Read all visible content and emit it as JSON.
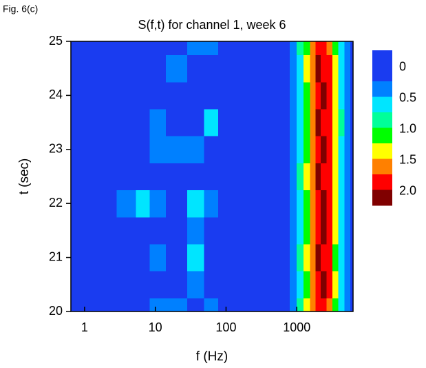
{
  "figure_label": "Fig. 6(c)",
  "chart_data": {
    "type": "contour",
    "title": "S(f,t) for channel 1, week 6",
    "x_label": "f (Hz)",
    "y_label": "t (sec)",
    "x": [
      0.64,
      1,
      2,
      4,
      7,
      10,
      20,
      40,
      60,
      100,
      300,
      700,
      900,
      1100,
      1400,
      1700,
      2000,
      2400,
      2900,
      3500,
      4300,
      5200,
      6250
    ],
    "y": [
      20,
      20.5,
      21,
      21.5,
      22,
      22.5,
      23,
      23.5,
      24,
      24.5,
      25
    ],
    "z": [
      [
        0.1,
        0.1,
        0.1,
        0.1,
        0.1,
        0.3,
        0.3,
        0.1,
        0.4,
        0.1,
        0.1,
        0.1,
        0.4,
        0.8,
        1.3,
        1.7,
        1.9,
        1.95,
        1.7,
        1.2,
        0.6,
        0.3,
        0.1
      ],
      [
        0.1,
        0.1,
        0.1,
        0.1,
        0.1,
        0.1,
        0.1,
        0.4,
        0.1,
        0.1,
        0.1,
        0.1,
        0.35,
        0.7,
        1.2,
        1.6,
        1.9,
        2.1,
        1.8,
        1.3,
        0.7,
        0.35,
        0.1
      ],
      [
        0.1,
        0.1,
        0.1,
        0.1,
        0.1,
        0.3,
        0.1,
        0.5,
        0.1,
        0.1,
        0.1,
        0.15,
        0.4,
        0.75,
        1.25,
        1.65,
        2.05,
        1.9,
        1.75,
        1.2,
        0.65,
        0.3,
        0.1
      ],
      [
        0.1,
        0.1,
        0.1,
        0.1,
        0.1,
        0.1,
        0.1,
        0.3,
        0.1,
        0.1,
        0.1,
        0.1,
        0.3,
        0.7,
        1.2,
        1.6,
        1.95,
        2.0,
        1.8,
        1.3,
        0.7,
        0.35,
        0.1
      ],
      [
        0.1,
        0.1,
        0.1,
        0.3,
        0.6,
        0.3,
        0.1,
        0.5,
        0.3,
        0.1,
        0.1,
        0.1,
        0.35,
        0.7,
        1.15,
        1.55,
        1.9,
        2.1,
        1.85,
        1.3,
        0.7,
        0.3,
        0.1
      ],
      [
        0.1,
        0.1,
        0.1,
        0.1,
        0.1,
        0.1,
        0.1,
        0.1,
        0.1,
        0.1,
        0.1,
        0.1,
        0.4,
        0.75,
        1.25,
        1.65,
        2.05,
        1.95,
        1.8,
        1.25,
        0.65,
        0.3,
        0.1
      ],
      [
        0.1,
        0.1,
        0.1,
        0.1,
        0.1,
        0.4,
        0.3,
        0.4,
        0.1,
        0.1,
        0.1,
        0.1,
        0.35,
        0.7,
        1.2,
        1.6,
        1.9,
        2.05,
        1.75,
        1.3,
        0.7,
        0.35,
        0.1
      ],
      [
        0.1,
        0.1,
        0.1,
        0.1,
        0.1,
        0.4,
        0.1,
        0.1,
        0.5,
        0.1,
        0.1,
        0.1,
        0.3,
        0.65,
        1.15,
        1.55,
        2.05,
        1.95,
        1.8,
        1.35,
        0.75,
        0.35,
        0.1
      ],
      [
        0.1,
        0.1,
        0.1,
        0.1,
        0.1,
        0.1,
        0.1,
        0.1,
        0.1,
        0.1,
        0.1,
        0.1,
        0.35,
        0.7,
        1.2,
        1.6,
        1.9,
        2.0,
        1.85,
        1.3,
        0.7,
        0.3,
        0.1
      ],
      [
        0.1,
        0.1,
        0.1,
        0.1,
        0.1,
        0.1,
        0.3,
        0.1,
        0.1,
        0.1,
        0.1,
        0.1,
        0.35,
        0.7,
        1.25,
        1.7,
        2.05,
        1.9,
        1.75,
        1.25,
        0.65,
        0.35,
        0.1
      ],
      [
        0.1,
        0.1,
        0.1,
        0.1,
        0.1,
        0.1,
        0.1,
        0.3,
        0.3,
        0.1,
        0.1,
        0.1,
        0.4,
        0.75,
        1.2,
        1.6,
        1.9,
        1.95,
        1.7,
        1.2,
        0.6,
        0.3,
        0.1
      ]
    ],
    "x_log": true,
    "xlim": [
      0.64,
      6250
    ],
    "xticks": [
      1,
      10,
      100,
      1000
    ],
    "ylim": [
      20,
      25
    ],
    "yticks": [
      20,
      21,
      22,
      23,
      24,
      25
    ],
    "levels": [
      -0.25,
      0,
      0.25,
      0.5,
      0.75,
      1,
      1.25,
      1.5,
      1.75,
      2,
      2.25
    ],
    "colors": [
      "#1a3cf0",
      "#1a3cf0",
      "#0080ff",
      "#00e5ff",
      "#00ff99",
      "#00ff00",
      "#ffff00",
      "#ff8000",
      "#ff0000",
      "#800000"
    ],
    "cticks": [
      0,
      0.5,
      {
        "value": 1,
        "label": "1.0"
      },
      1.5,
      {
        "value": 2,
        "label": "2.0"
      }
    ]
  }
}
